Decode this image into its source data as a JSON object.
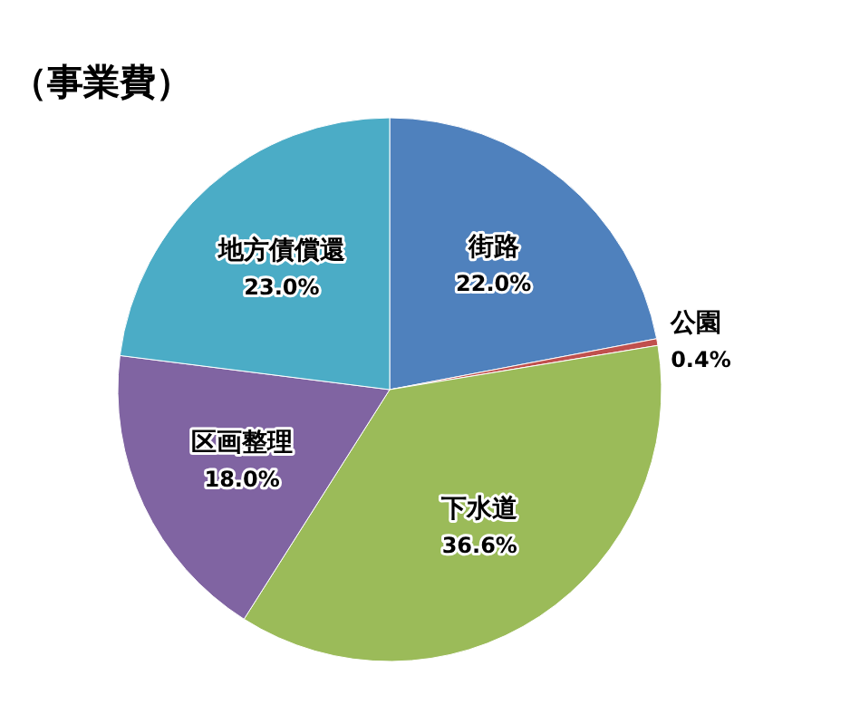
{
  "chart_data": {
    "type": "pie",
    "title": "（事業費）",
    "categories": [
      "街路",
      "公園",
      "下水道",
      "区画整理",
      "地方債償還"
    ],
    "values": [
      22.0,
      0.4,
      36.6,
      18.0,
      23.0
    ],
    "value_labels": [
      "22.0%",
      "0.4%",
      "36.6%",
      "18.0%",
      "23.0%"
    ],
    "colors": [
      "#4f81bd",
      "#c0504d",
      "#9bbb59",
      "#8064a2",
      "#4bacc6"
    ]
  }
}
